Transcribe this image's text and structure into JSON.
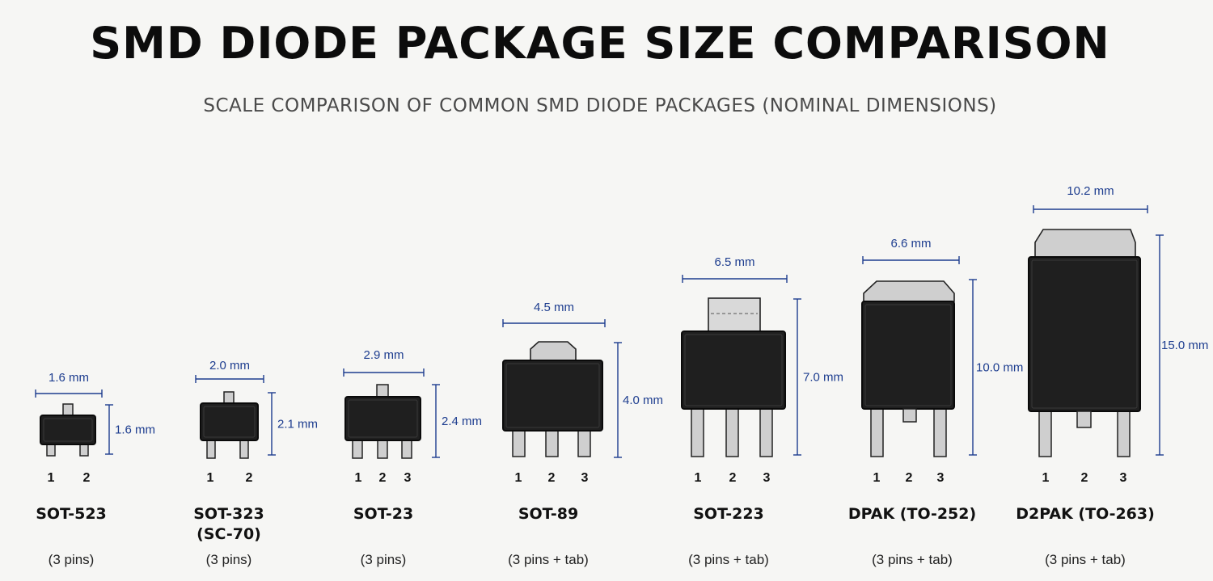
{
  "title": "SMD DIODE PACKAGE SIZE COMPARISON",
  "subtitle": "SCALE COMPARISON OF COMMON SMD DIODE PACKAGES (NOMINAL DIMENSIONS)",
  "colors": {
    "body": "#1f1f1f",
    "lead": "#cfcfcf",
    "dimension": "#1d3d8f"
  },
  "packages": [
    {
      "name": "SOT-523",
      "name2": "",
      "pins_note": "(3 pins)",
      "width": "1.6 mm",
      "height": "1.6 mm",
      "pin_labels": [
        "1",
        "2"
      ]
    },
    {
      "name": "SOT-323",
      "name2": "(SC-70)",
      "pins_note": "(3 pins)",
      "width": "2.0 mm",
      "height": "2.1 mm",
      "pin_labels": [
        "1",
        "2"
      ]
    },
    {
      "name": "SOT-23",
      "name2": "",
      "pins_note": "(3 pins)",
      "width": "2.9 mm",
      "height": "2.4 mm",
      "pin_labels": [
        "1",
        "2",
        "3"
      ]
    },
    {
      "name": "SOT-89",
      "name2": "",
      "pins_note": "(3 pins + tab)",
      "width": "4.5 mm",
      "height": "4.0 mm",
      "pin_labels": [
        "1",
        "2",
        "3"
      ]
    },
    {
      "name": "SOT-223",
      "name2": "",
      "pins_note": "(3 pins + tab)",
      "width": "6.5 mm",
      "height": "7.0 mm",
      "pin_labels": [
        "1",
        "2",
        "3"
      ]
    },
    {
      "name": "DPAK (TO-252)",
      "name2": "",
      "pins_note": "(3 pins + tab)",
      "width": "6.6 mm",
      "height": "10.0 mm",
      "pin_labels": [
        "1",
        "2",
        "3"
      ]
    },
    {
      "name": "D2PAK (TO-263)",
      "name2": "",
      "pins_note": "(3 pins + tab)",
      "width": "10.2 mm",
      "height": "15.0 mm",
      "pin_labels": [
        "1",
        "2",
        "3"
      ]
    }
  ]
}
